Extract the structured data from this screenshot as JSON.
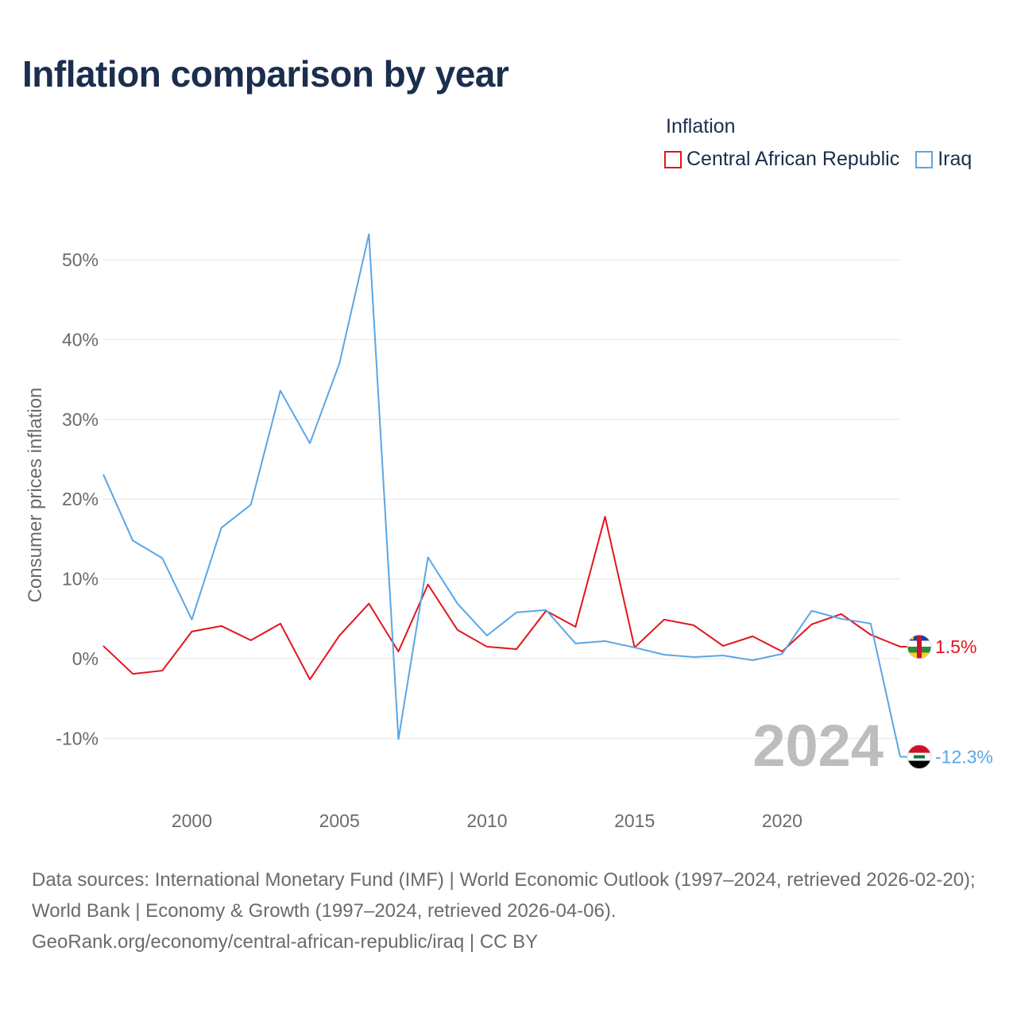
{
  "title": "Inflation comparison by year",
  "legend": {
    "title": "Inflation",
    "items": [
      {
        "label": "Central African Republic",
        "color": "#e3141c"
      },
      {
        "label": "Iraq",
        "color": "#5aa6e6"
      }
    ]
  },
  "watermark_year": "2024",
  "sources": {
    "line1": "Data sources: International Monetary Fund (IMF) | World Economic Outlook (1997–2024, retrieved 2026-02-20); World Bank | Economy & Growth (1997–2024, retrieved 2026-04-06).",
    "line2": "GeoRank.org/economy/central-african-republic/iraq | CC BY"
  },
  "chart_data": {
    "type": "line",
    "title": "Inflation comparison by year",
    "xlabel": "",
    "ylabel": "Consumer prices inflation",
    "x": [
      1997,
      1998,
      1999,
      2000,
      2001,
      2002,
      2003,
      2004,
      2005,
      2006,
      2007,
      2008,
      2009,
      2010,
      2011,
      2012,
      2013,
      2014,
      2015,
      2016,
      2017,
      2018,
      2019,
      2020,
      2021,
      2022,
      2023,
      2024
    ],
    "xlim": [
      1997,
      2024
    ],
    "ylim": [
      -13,
      54
    ],
    "xticks": [
      2000,
      2005,
      2010,
      2015,
      2020
    ],
    "yticks": [
      -10,
      0,
      10,
      20,
      30,
      40,
      50
    ],
    "ytick_labels": [
      "-10%",
      "0%",
      "10%",
      "20%",
      "30%",
      "40%",
      "50%"
    ],
    "series": [
      {
        "name": "Central African Republic",
        "color": "#e3141c",
        "end_label": "1.5%",
        "flag": "central-african-republic-flag-icon",
        "values": [
          1.6,
          -1.9,
          -1.5,
          3.4,
          4.1,
          2.3,
          4.4,
          -2.6,
          2.9,
          6.9,
          0.9,
          9.3,
          3.6,
          1.5,
          1.2,
          6.0,
          4.0,
          17.8,
          1.4,
          4.9,
          4.2,
          1.6,
          2.8,
          0.9,
          4.3,
          5.6,
          3.0,
          1.5
        ]
      },
      {
        "name": "Iraq",
        "color": "#5aa6e6",
        "end_label": "-12.3%",
        "flag": "iraq-flag-icon",
        "values": [
          23.1,
          14.8,
          12.6,
          4.9,
          16.4,
          19.3,
          33.6,
          27.0,
          37.0,
          53.2,
          -10.1,
          12.7,
          6.9,
          2.9,
          5.8,
          6.1,
          1.9,
          2.2,
          1.4,
          0.5,
          0.2,
          0.4,
          -0.2,
          0.6,
          6.0,
          5.0,
          4.4,
          -12.3
        ]
      }
    ],
    "grid": true
  }
}
